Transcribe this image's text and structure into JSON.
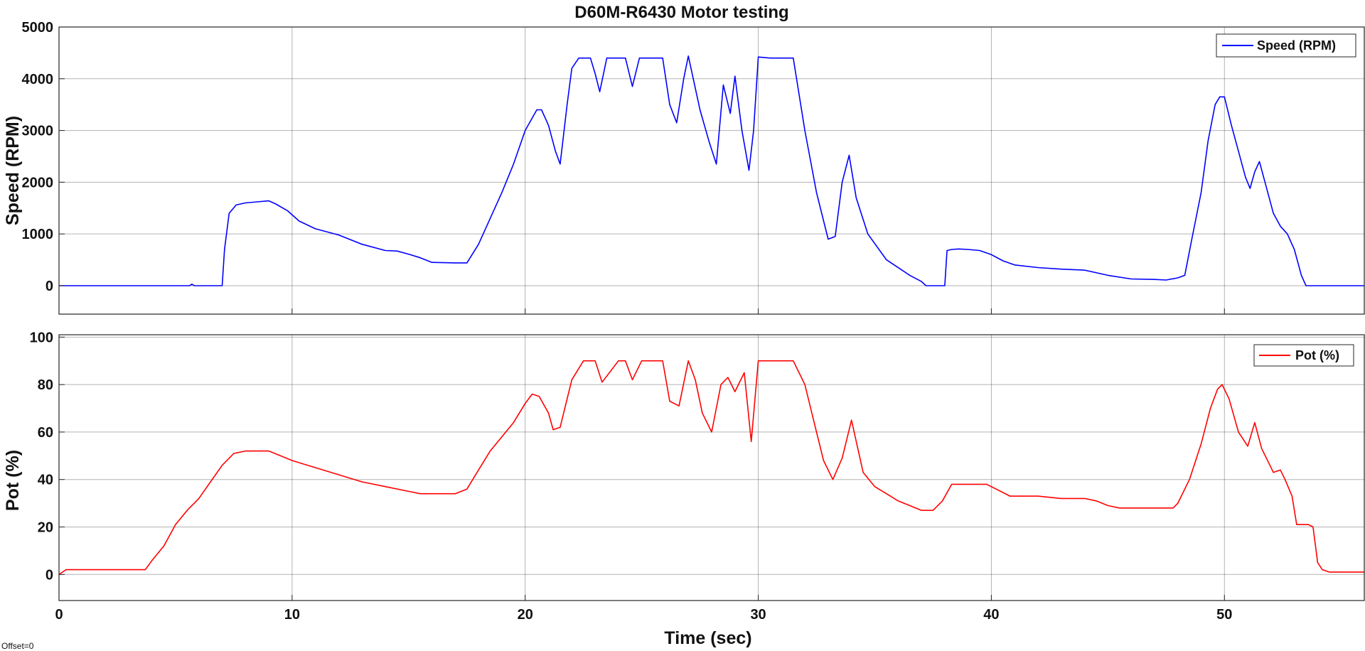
{
  "figure": {
    "footnote": "Offset=0",
    "xlabel": "Time (sec)"
  },
  "chart_data": [
    {
      "type": "line",
      "title": "D60M-R6430 Motor testing",
      "xlabel": "",
      "ylabel": "Speed (RPM)",
      "xlim": [
        0,
        56
      ],
      "ylim": [
        -550,
        5000
      ],
      "xticks": [
        10,
        20,
        30,
        40,
        50
      ],
      "yticks": [
        0,
        1000,
        2000,
        3000,
        4000,
        5000
      ],
      "grid": true,
      "legend_position": "top-right",
      "series": [
        {
          "name": "Speed (RPM)",
          "color": "#0000ff",
          "x": [
            0,
            5.6,
            5.7,
            5.8,
            7.0,
            7.1,
            7.3,
            7.6,
            8.0,
            8.5,
            9.0,
            9.3,
            9.8,
            10.3,
            11.0,
            12.0,
            13.0,
            14.0,
            14.5,
            15.0,
            15.5,
            16.0,
            17.0,
            17.5,
            18.0,
            18.5,
            19.0,
            19.5,
            20.0,
            20.5,
            20.7,
            21.0,
            21.3,
            21.5,
            21.8,
            22.0,
            22.3,
            22.8,
            23.0,
            23.2,
            23.5,
            24.0,
            24.3,
            24.6,
            24.9,
            25.2,
            25.5,
            25.9,
            26.2,
            26.5,
            26.8,
            27.0,
            27.5,
            27.9,
            28.2,
            28.5,
            28.8,
            29.0,
            29.3,
            29.6,
            29.8,
            30.0,
            30.5,
            31.0,
            31.5,
            32.0,
            32.5,
            33.0,
            33.3,
            33.6,
            33.9,
            34.2,
            34.7,
            35.5,
            36.5,
            37.0,
            37.2,
            37.5,
            38.0,
            38.1,
            38.3,
            38.6,
            39.0,
            39.5,
            40.0,
            40.5,
            41.0,
            42.0,
            43.0,
            44.0,
            45.0,
            46.0,
            47.0,
            47.5,
            48.0,
            48.3,
            48.6,
            49.0,
            49.3,
            49.6,
            49.8,
            50.0,
            50.3,
            50.6,
            50.9,
            51.1,
            51.3,
            51.5,
            51.8,
            52.1,
            52.4,
            52.7,
            53.0,
            53.3,
            53.5,
            53.7,
            54.0,
            55.0,
            56.0
          ],
          "y": [
            0,
            0,
            30,
            0,
            0,
            700,
            1400,
            1560,
            1600,
            1620,
            1640,
            1580,
            1450,
            1250,
            1100,
            980,
            800,
            680,
            670,
            610,
            540,
            450,
            440,
            440,
            800,
            1300,
            1800,
            2350,
            3000,
            3400,
            3400,
            3100,
            2600,
            2350,
            3500,
            4200,
            4400,
            4400,
            4100,
            3750,
            4400,
            4400,
            4400,
            3850,
            4400,
            4400,
            4400,
            4400,
            3500,
            3150,
            4000,
            4440,
            3400,
            2770,
            2350,
            3880,
            3330,
            4050,
            3000,
            2230,
            3000,
            4420,
            4400,
            4400,
            4400,
            3000,
            1800,
            900,
            950,
            2000,
            2520,
            1700,
            1000,
            500,
            200,
            80,
            0,
            0,
            0,
            680,
            700,
            710,
            700,
            680,
            600,
            480,
            400,
            350,
            320,
            300,
            200,
            130,
            120,
            110,
            150,
            200,
            900,
            1800,
            2800,
            3500,
            3650,
            3650,
            3100,
            2600,
            2100,
            1880,
            2200,
            2400,
            1900,
            1400,
            1150,
            1000,
            700,
            200,
            0,
            0,
            0,
            0,
            0
          ]
        }
      ]
    },
    {
      "type": "line",
      "title": "",
      "xlabel": "Time (sec)",
      "ylabel": "Pot (%)",
      "xlim": [
        0,
        56
      ],
      "ylim": [
        -11,
        101
      ],
      "xticks": [
        0,
        10,
        20,
        30,
        40,
        50
      ],
      "yticks": [
        0,
        20,
        40,
        60,
        80,
        100
      ],
      "grid": true,
      "legend_position": "top-right",
      "series": [
        {
          "name": "Pot (%)",
          "color": "#ff0000",
          "x": [
            0,
            0.3,
            3.7,
            4.0,
            4.5,
            5.0,
            5.5,
            6.0,
            6.5,
            7.0,
            7.5,
            8.0,
            8.5,
            9.0,
            9.5,
            10.0,
            11.0,
            12.0,
            13.0,
            14.0,
            15.0,
            15.5,
            16.0,
            17.0,
            17.5,
            18.0,
            18.5,
            19.0,
            19.5,
            20.0,
            20.3,
            20.6,
            21.0,
            21.2,
            21.5,
            22.0,
            22.5,
            22.8,
            23.0,
            23.3,
            24.0,
            24.3,
            24.6,
            25.0,
            25.9,
            26.2,
            26.6,
            27.0,
            27.3,
            27.6,
            28.0,
            28.4,
            28.7,
            29.0,
            29.4,
            29.7,
            30.0,
            31.5,
            32.0,
            32.5,
            32.8,
            33.2,
            33.6,
            34.0,
            34.5,
            35.0,
            35.5,
            36.0,
            36.5,
            37.0,
            37.5,
            37.9,
            38.3,
            39.0,
            39.8,
            40.2,
            40.8,
            41.5,
            42.0,
            43.0,
            44.0,
            44.5,
            45.0,
            45.5,
            46.0,
            47.0,
            47.8,
            48.0,
            48.5,
            49.0,
            49.4,
            49.7,
            49.9,
            50.2,
            50.6,
            51.0,
            51.3,
            51.6,
            51.9,
            52.1,
            52.4,
            52.6,
            52.9,
            53.1,
            53.4,
            53.6,
            53.8,
            54.0,
            54.2,
            54.5,
            55.0,
            56.0
          ],
          "y": [
            0,
            2,
            2,
            6,
            12,
            21,
            27,
            32,
            39,
            46,
            51,
            52,
            52,
            52,
            50,
            48,
            45,
            42,
            39,
            37,
            35,
            34,
            34,
            34,
            36,
            44,
            52,
            58,
            64,
            72,
            76,
            75,
            68,
            61,
            62,
            82,
            90,
            90,
            90,
            81,
            90,
            90,
            82,
            90,
            90,
            73,
            71,
            90,
            82,
            68,
            60,
            80,
            83,
            77,
            85,
            56,
            90,
            90,
            80,
            60,
            48,
            40,
            49,
            65,
            43,
            37,
            34,
            31,
            29,
            27,
            27,
            31,
            38,
            38,
            38,
            36,
            33,
            33,
            33,
            32,
            32,
            31,
            29,
            28,
            28,
            28,
            28,
            30,
            40,
            55,
            70,
            78,
            80,
            74,
            60,
            54,
            64,
            53,
            47,
            43,
            44,
            40,
            33,
            21,
            21,
            21,
            20,
            5,
            2,
            1,
            1,
            1
          ]
        }
      ]
    }
  ]
}
